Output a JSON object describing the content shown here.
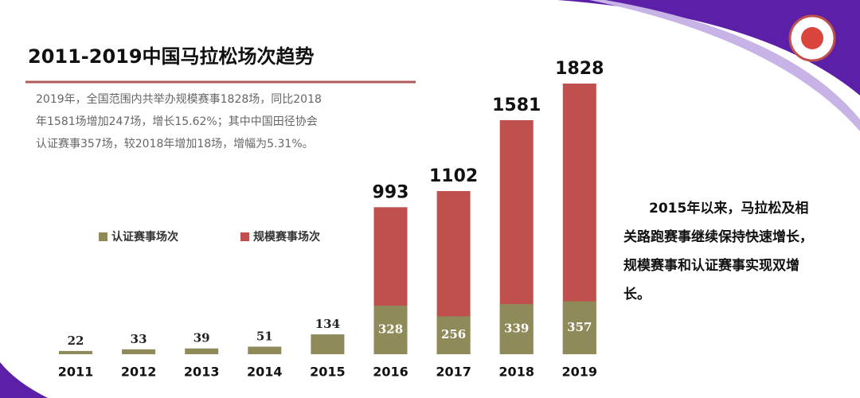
{
  "chart_data": {
    "type": "bar",
    "title": "2011-2019中国马拉松场次趋势",
    "description": [
      "2019年，全国范围内共举办规模赛事1828场，同比2018",
      "年1581场增加247场，增长15.62%；其中中国田径协会",
      "认证赛事357场，较2018年增加18场，增幅为5.31%。"
    ],
    "note": [
      "2015年以来，马拉松及相",
      "关路跑赛事继续保持快速增长，",
      "规模赛事和认证赛事实现双增",
      "长。"
    ],
    "categories": [
      "2011",
      "2012",
      "2013",
      "2014",
      "2015",
      "2016",
      "2017",
      "2018",
      "2019"
    ],
    "series": [
      {
        "name": "规模赛事场次",
        "color": "#c0504d",
        "values": [
          null,
          null,
          null,
          null,
          null,
          993,
          1102,
          1581,
          1828
        ]
      },
      {
        "name": "认证赛事场次",
        "color": "#8f8a5a",
        "values": [
          22,
          33,
          39,
          51,
          134,
          328,
          256,
          339,
          357
        ]
      }
    ],
    "legend": [
      "认证赛事场次",
      "规模赛事场次"
    ]
  }
}
